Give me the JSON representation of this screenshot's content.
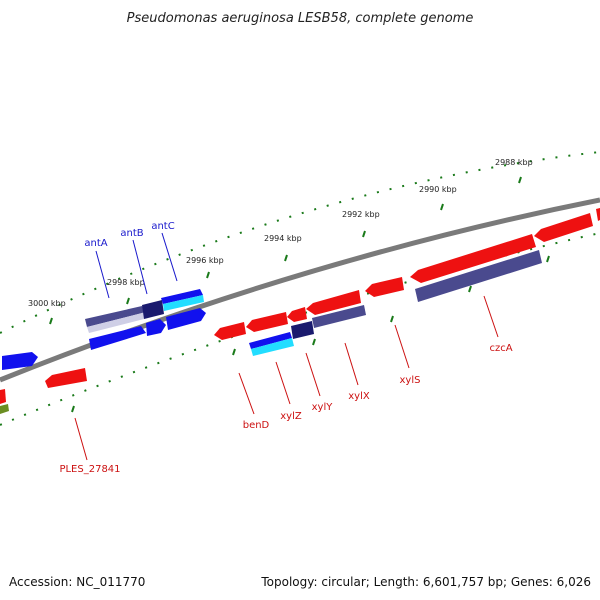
{
  "title": "Pseudomonas aeruginosa LESB58, complete genome",
  "accession": "Accession: NC_011770",
  "summary": "Topology: circular; Length: 6,601,757 bp; Genes: 6,026",
  "tick_labels": [
    "3000 kbp",
    "2998 kbp",
    "2996 kbp",
    "2994 kbp",
    "2992 kbp",
    "2990 kbp",
    "2988 kbp"
  ],
  "labels_plus_strand": [
    "antA",
    "antB",
    "antC"
  ],
  "labels_minus_strand": [
    "PLES_27841",
    "benD",
    "xylZ",
    "xylY",
    "xylX",
    "xylS",
    "czcA"
  ],
  "colors": {
    "strand_plus_label": "#1a1acc",
    "strand_minus_label": "#cc1111",
    "backbone": "#7a7a7a",
    "tick_green": "#1a7a1a",
    "gene_red": "#ee1111",
    "gene_blue": "#1111ee",
    "gene_navy": "#1a1a6e",
    "gene_cyan": "#22ddff",
    "gene_slate": "#4a4a8e"
  }
}
